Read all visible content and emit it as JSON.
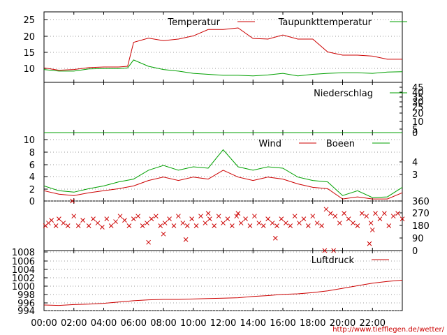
{
  "chart_data": [
    {
      "type": "line",
      "legend": {
        "placement": "top-right",
        "entries": [
          "Temperatur",
          "Taupunkttemperatur"
        ]
      },
      "ylim": [
        5,
        27
      ],
      "yticks": [
        "10",
        "15",
        "20",
        "25"
      ],
      "grid": true,
      "series": [
        {
          "name": "Temperatur",
          "color": "#cc0000",
          "x": [
            0,
            1,
            2,
            3,
            4,
            5,
            5.6,
            6,
            7,
            8,
            9,
            10,
            11,
            12,
            13,
            14,
            15,
            16,
            17,
            18,
            19,
            20,
            21,
            22,
            23,
            24
          ],
          "y": [
            9.5,
            8.8,
            9.0,
            9.6,
            9.8,
            9.8,
            10,
            17.5,
            18.8,
            18.0,
            18.5,
            19.5,
            21.5,
            21.5,
            22.0,
            18.7,
            18.5,
            19.8,
            18.5,
            18.5,
            14.5,
            13.5,
            13.5,
            13.2,
            12.2,
            12.2
          ]
        },
        {
          "name": "Taupunkttemperatur",
          "color": "#00a000",
          "x": [
            0,
            1,
            2,
            3,
            4,
            5,
            5.6,
            6,
            7,
            8,
            9,
            10,
            11,
            12,
            13,
            14,
            15,
            16,
            17,
            18,
            19,
            20,
            21,
            22,
            23,
            24
          ],
          "y": [
            9.0,
            8.5,
            8.5,
            9.2,
            9.3,
            9.3,
            9.5,
            12.0,
            10.0,
            9.0,
            8.5,
            7.8,
            7.5,
            7.2,
            7.2,
            7.0,
            7.3,
            7.8,
            7.0,
            7.5,
            7.8,
            8.0,
            8.0,
            7.8,
            8.2,
            8.3
          ]
        }
      ]
    },
    {
      "type": "line",
      "legend": {
        "placement": "top-right",
        "entries": [
          "Niederschlag"
        ]
      },
      "ylim": [
        0,
        45
      ],
      "yticks_right": [
        "0",
        "5",
        "10",
        "20",
        "25",
        "30",
        "35",
        "40",
        "45"
      ],
      "series": [
        {
          "name": "Niederschlag",
          "color": "#00a000",
          "x": [
            0,
            24
          ],
          "y": [
            0,
            0
          ]
        }
      ]
    },
    {
      "type": "line",
      "legend": {
        "placement": "top-right",
        "entries": [
          "Wind",
          "Boeen"
        ]
      },
      "ylim": [
        0,
        10
      ],
      "yticks": [
        "0",
        "2",
        "4",
        "6",
        "8",
        "10"
      ],
      "yticks_right": [
        "3",
        "4"
      ],
      "grid": true,
      "series": [
        {
          "name": "Wind",
          "color": "#cc0000",
          "x": [
            0,
            1,
            2,
            3,
            4,
            5,
            6,
            7,
            8,
            9,
            10,
            11,
            12,
            13,
            14,
            15,
            16,
            17,
            18,
            19,
            20,
            21,
            22,
            23,
            24
          ],
          "y": [
            1.5,
            1.0,
            0.8,
            1.2,
            1.5,
            1.8,
            2.2,
            3.0,
            3.5,
            3.0,
            3.5,
            3.2,
            4.5,
            3.5,
            3.0,
            3.5,
            3.2,
            2.5,
            2.0,
            1.8,
            0.3,
            0.6,
            0.3,
            0.3,
            1.2
          ]
        },
        {
          "name": "Boeen",
          "color": "#00a000",
          "x": [
            0,
            1,
            2,
            3,
            4,
            5,
            6,
            7,
            8,
            9,
            10,
            11,
            12,
            13,
            14,
            15,
            16,
            17,
            18,
            19,
            20,
            21,
            22,
            23,
            24
          ],
          "y": [
            2.2,
            1.5,
            1.3,
            1.8,
            2.2,
            2.8,
            3.2,
            4.5,
            5.2,
            4.5,
            5.0,
            4.8,
            7.5,
            5.0,
            4.5,
            5.0,
            4.8,
            3.5,
            3.0,
            2.8,
            0.8,
            1.5,
            0.5,
            0.6,
            2.0
          ]
        }
      ]
    },
    {
      "type": "scatter",
      "ylim": [
        0,
        360
      ],
      "yticks_right": [
        "0",
        "90",
        "180",
        "270",
        "360"
      ],
      "marker": "x",
      "series": [
        {
          "name": "",
          "color": "#cc0000",
          "x": [
            0.1,
            0.3,
            0.5,
            0.8,
            1.0,
            1.3,
            1.6,
            2.0,
            2.3,
            2.6,
            3.0,
            3.3,
            3.6,
            3.9,
            4.2,
            4.5,
            4.8,
            5.1,
            5.4,
            5.7,
            6.0,
            6.3,
            6.6,
            6.9,
            7.2,
            7.5,
            7.8,
            8.1,
            8.4,
            8.7,
            9.0,
            9.3,
            9.6,
            9.9,
            10.2,
            10.5,
            10.8,
            11.1,
            11.4,
            11.7,
            12.0,
            12.3,
            12.6,
            12.9,
            13.2,
            13.5,
            13.8,
            14.1,
            14.4,
            14.7,
            15.0,
            15.3,
            15.6,
            15.9,
            16.2,
            16.5,
            16.8,
            17.1,
            17.4,
            17.7,
            18.0,
            18.3,
            18.6,
            18.9,
            19.2,
            19.5,
            19.8,
            20.1,
            20.4,
            20.7,
            21.0,
            21.3,
            21.6,
            21.9,
            22.2,
            22.5,
            22.8,
            23.1,
            23.4,
            23.7,
            24.0,
            1.9,
            7.0,
            11.0,
            13.0,
            15.5,
            18.8,
            19.4,
            21.8,
            22.0,
            8.0,
            9.5
          ],
          "y": [
            180,
            200,
            220,
            180,
            230,
            200,
            180,
            250,
            180,
            220,
            180,
            230,
            200,
            170,
            230,
            180,
            210,
            250,
            220,
            180,
            230,
            250,
            180,
            200,
            230,
            250,
            180,
            200,
            230,
            180,
            250,
            200,
            180,
            230,
            180,
            250,
            200,
            230,
            180,
            250,
            200,
            230,
            180,
            250,
            200,
            230,
            180,
            250,
            200,
            180,
            230,
            200,
            180,
            230,
            200,
            180,
            250,
            200,
            230,
            180,
            250,
            200,
            180,
            300,
            270,
            250,
            200,
            270,
            230,
            200,
            180,
            270,
            250,
            200,
            270,
            230,
            270,
            180,
            250,
            270,
            230,
            360,
            60,
            270,
            270,
            90,
            0,
            0,
            50,
            150,
            120,
            80
          ]
        }
      ]
    },
    {
      "type": "line",
      "legend": {
        "placement": "top-right",
        "entries": [
          "Luftdruck"
        ]
      },
      "ylim": [
        994,
        1008
      ],
      "yticks": [
        "994",
        "996",
        "998",
        "1000",
        "1002",
        "1004",
        "1006",
        "1008"
      ],
      "grid": true,
      "xticks": [
        "00:00",
        "02:00",
        "04:00",
        "06:00",
        "08:00",
        "10:00",
        "12:00",
        "14:00",
        "16:00",
        "18:00",
        "20:00",
        "22:00"
      ],
      "series": [
        {
          "name": "Luftdruck",
          "color": "#cc0000",
          "x": [
            0,
            1,
            2,
            3,
            4,
            5,
            6,
            7,
            8,
            9,
            10,
            11,
            12,
            13,
            14,
            15,
            16,
            17,
            18,
            19,
            20,
            21,
            22,
            23,
            24
          ],
          "y": [
            995.3,
            995.2,
            995.4,
            995.5,
            995.7,
            996.0,
            996.3,
            996.5,
            996.6,
            996.6,
            996.7,
            996.8,
            996.9,
            997.0,
            997.3,
            997.5,
            997.8,
            997.9,
            998.2,
            998.6,
            999.2,
            999.8,
            1000.4,
            1000.8,
            1001.1
          ]
        }
      ]
    }
  ],
  "source_text": "http://www.tiefflegen.de/wetter/"
}
